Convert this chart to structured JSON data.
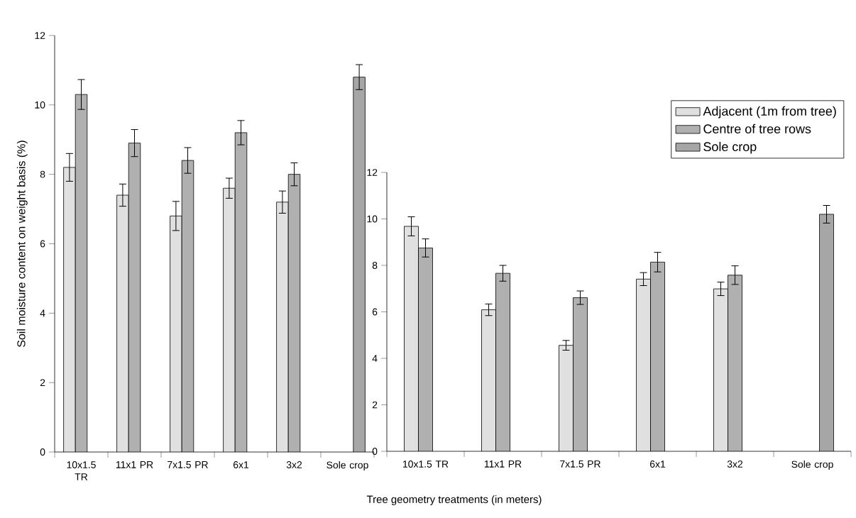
{
  "chart_data": [
    {
      "type": "bar",
      "ylabel": "Soil moisture content on weight basis (%)",
      "xlabel": "Tree geometry treatments (in meters)",
      "categories": [
        "10x1.5 TR",
        "11x1 PR",
        "7x1.5 PR",
        "6x1",
        "3x2",
        "Sole crop"
      ],
      "ylim": [
        0,
        12
      ],
      "yticks": [
        0,
        2,
        4,
        6,
        8,
        10,
        12
      ],
      "series": [
        {
          "color": "#e0e0e0",
          "values": [
            8.2,
            7.4,
            6.8,
            7.6,
            7.2,
            null
          ],
          "errors": [
            0.4,
            0.32,
            0.42,
            0.29,
            0.32,
            null
          ]
        },
        {
          "color": "#b0b0b0",
          "values": [
            10.3,
            8.9,
            8.4,
            9.2,
            8.0,
            null
          ],
          "errors": [
            0.43,
            0.39,
            0.37,
            0.35,
            0.33,
            null
          ]
        },
        {
          "color": "#a6a6a6",
          "values": [
            null,
            null,
            null,
            null,
            null,
            10.8
          ],
          "errors": [
            null,
            null,
            null,
            null,
            null,
            0.36
          ]
        }
      ]
    },
    {
      "type": "bar",
      "legend": "top right",
      "categories": [
        "10x1.5 TR",
        "11x1 PR",
        "7x1.5 PR",
        "6x1",
        "3x2",
        "Sole crop"
      ],
      "ylim": [
        0,
        12
      ],
      "yticks": [
        0,
        2,
        4,
        6,
        8,
        10,
        12
      ],
      "series": [
        {
          "name": "Adjacent (1m from tree)",
          "color": "#e0e0e0",
          "values": [
            9.68,
            6.09,
            4.56,
            7.41,
            6.99,
            null
          ],
          "errors": [
            0.41,
            0.25,
            0.21,
            0.28,
            0.29,
            null
          ]
        },
        {
          "name": "Centre of tree rows",
          "color": "#b0b0b0",
          "values": [
            8.75,
            7.66,
            6.61,
            8.14,
            7.58,
            null
          ],
          "errors": [
            0.39,
            0.34,
            0.29,
            0.42,
            0.4,
            null
          ]
        },
        {
          "name": "Sole crop",
          "color": "#a6a6a6",
          "values": [
            null,
            null,
            null,
            null,
            null,
            10.2
          ],
          "errors": [
            null,
            null,
            null,
            null,
            null,
            0.38
          ]
        }
      ]
    }
  ]
}
